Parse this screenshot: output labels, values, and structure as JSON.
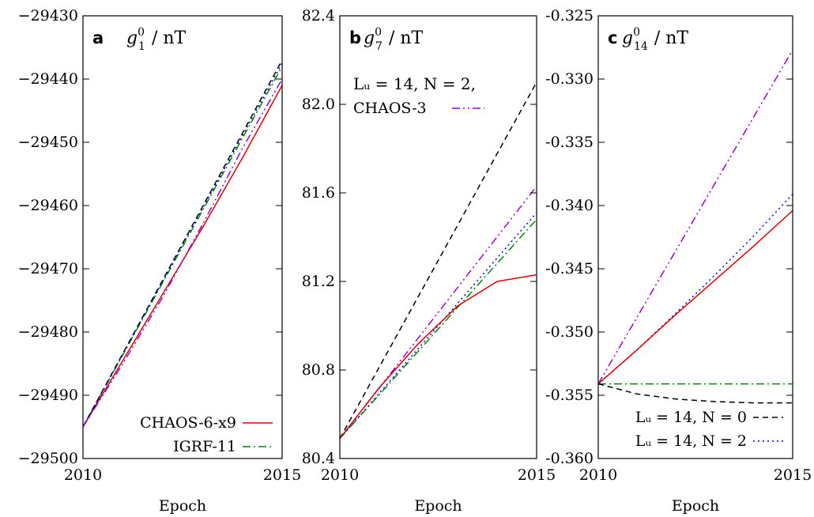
{
  "chart_data": [
    {
      "type": "line",
      "panel_letter": "a",
      "title_base": "g",
      "title_sup": "0",
      "title_sub": "1",
      "title_unit": "/ nT",
      "xlabel": "Epoch",
      "xlim": [
        2010,
        2015
      ],
      "ylim": [
        -29500,
        -29430
      ],
      "xticks": [
        2010,
        2015
      ],
      "xtick_labels": [
        "2010",
        "2015"
      ],
      "yticks": [
        -29500,
        -29490,
        -29480,
        -29470,
        -29460,
        -29450,
        -29440,
        -29430
      ],
      "ytick_labels": [
        "−29500",
        "−29490",
        "−29480",
        "−29470",
        "−29460",
        "−29450",
        "−29440",
        "−29430"
      ],
      "legend_position": "bottom-right",
      "legend": [
        {
          "label": "CHAOS-6-x9",
          "color": "#dd0000",
          "dash": "solid"
        },
        {
          "label": "IGRF-11",
          "color": "#008800",
          "dash": "dashdot"
        }
      ],
      "series": [
        {
          "name": "CHAOS-6-x9",
          "color": "#dd0000",
          "dash": "solid",
          "x": [
            2010,
            2011,
            2012,
            2013,
            2014,
            2015
          ],
          "y": [
            -29495,
            -29484.5,
            -29474,
            -29463.5,
            -29452.5,
            -29441
          ]
        },
        {
          "name": "IGRF-11",
          "color": "#008800",
          "dash": "dashdot",
          "x": [
            2010,
            2015
          ],
          "y": [
            -29495,
            -29438
          ]
        },
        {
          "color": "#000000",
          "dash": "dashed",
          "x": [
            2010,
            2015
          ],
          "y": [
            -29495,
            -29437
          ]
        },
        {
          "color": "#0000dd",
          "dash": "dotted",
          "x": [
            2010,
            2015
          ],
          "y": [
            -29495,
            -29437.5
          ]
        },
        {
          "color": "#9900cc",
          "dash": "dashdotdot",
          "x": [
            2010,
            2011,
            2012,
            2013,
            2014,
            2015
          ],
          "y": [
            -29495,
            -29485,
            -29474.5,
            -29463,
            -29451,
            -29440
          ]
        }
      ]
    },
    {
      "type": "line",
      "panel_letter": "b",
      "title_base": "g",
      "title_sup": "0",
      "title_sub": "7",
      "title_unit": "/ nT",
      "xlabel": "Epoch",
      "xlim": [
        2010,
        2015
      ],
      "ylim": [
        80.4,
        82.4
      ],
      "xticks": [
        2010,
        2015
      ],
      "xtick_labels": [
        "2010",
        "2015"
      ],
      "yticks": [
        80.4,
        80.8,
        81.2,
        81.6,
        82.0,
        82.4
      ],
      "ytick_labels": [
        "80.4",
        "80.8",
        "81.2",
        "81.6",
        "82.0",
        "82.4"
      ],
      "legend_position": "top-left",
      "legend": [
        {
          "label": "CHAOS-3",
          "prefix": "Lᵤ = 14, N = 2,",
          "color": "#9900cc",
          "dash": "dashdotdot"
        }
      ],
      "series": [
        {
          "color": "#000000",
          "dash": "dashed",
          "x": [
            2010,
            2015
          ],
          "y": [
            80.49,
            82.1
          ]
        },
        {
          "name": "CHAOS-3",
          "color": "#9900cc",
          "dash": "dashdotdot",
          "x": [
            2010,
            2015
          ],
          "y": [
            80.49,
            81.63
          ]
        },
        {
          "color": "#0000dd",
          "dash": "dotted",
          "x": [
            2010,
            2015
          ],
          "y": [
            80.49,
            81.51
          ]
        },
        {
          "color": "#008800",
          "dash": "dashdot",
          "x": [
            2010,
            2015
          ],
          "y": [
            80.49,
            81.48
          ]
        },
        {
          "color": "#dd0000",
          "dash": "solid",
          "x": [
            2010,
            2011,
            2012,
            2013,
            2014,
            2015
          ],
          "y": [
            80.49,
            80.72,
            80.92,
            81.09,
            81.2,
            81.23
          ]
        }
      ]
    },
    {
      "type": "line",
      "panel_letter": "c",
      "title_base": "g",
      "title_sup": "0",
      "title_sub": "14",
      "title_unit": "/ nT",
      "xlabel": "Epoch",
      "xlim": [
        2010,
        2015
      ],
      "ylim": [
        -0.36,
        -0.325
      ],
      "xticks": [
        2010,
        2015
      ],
      "xtick_labels": [
        "2010",
        "2015"
      ],
      "yticks": [
        -0.36,
        -0.355,
        -0.35,
        -0.345,
        -0.34,
        -0.335,
        -0.33,
        -0.325
      ],
      "ytick_labels": [
        "-0.360",
        "-0.355",
        "-0.350",
        "-0.345",
        "-0.340",
        "-0.335",
        "-0.330",
        "-0.325"
      ],
      "legend_position": "bottom-right",
      "legend": [
        {
          "label": "Lᵤ = 14, N = 0",
          "color": "#000000",
          "dash": "dashed"
        },
        {
          "label": "Lᵤ = 14, N = 2",
          "color": "#0000dd",
          "dash": "dotted"
        }
      ],
      "series": [
        {
          "color": "#9900cc",
          "dash": "dashdotdot",
          "x": [
            2010,
            2015
          ],
          "y": [
            -0.3541,
            -0.3277
          ]
        },
        {
          "name": "Lᵤ = 14, N = 2",
          "color": "#0000dd",
          "dash": "dotted",
          "x": [
            2010,
            2011,
            2012,
            2013,
            2014,
            2015
          ],
          "y": [
            -0.3541,
            -0.3514,
            -0.3485,
            -0.3455,
            -0.3424,
            -0.3391
          ]
        },
        {
          "color": "#dd0000",
          "dash": "solid",
          "x": [
            2010,
            2011,
            2012,
            2013,
            2014,
            2015
          ],
          "y": [
            -0.3541,
            -0.3514,
            -0.3486,
            -0.3459,
            -0.3432,
            -0.3404
          ]
        },
        {
          "color": "#008800",
          "dash": "dashdot",
          "x": [
            2010,
            2015
          ],
          "y": [
            -0.3541,
            -0.3541
          ]
        },
        {
          "name": "Lᵤ = 14, N = 0",
          "color": "#000000",
          "dash": "dashed",
          "x": [
            2010,
            2011,
            2012,
            2013,
            2014,
            2015
          ],
          "y": [
            -0.3541,
            -0.3549,
            -0.3553,
            -0.3555,
            -0.3556,
            -0.3556
          ]
        }
      ]
    }
  ]
}
